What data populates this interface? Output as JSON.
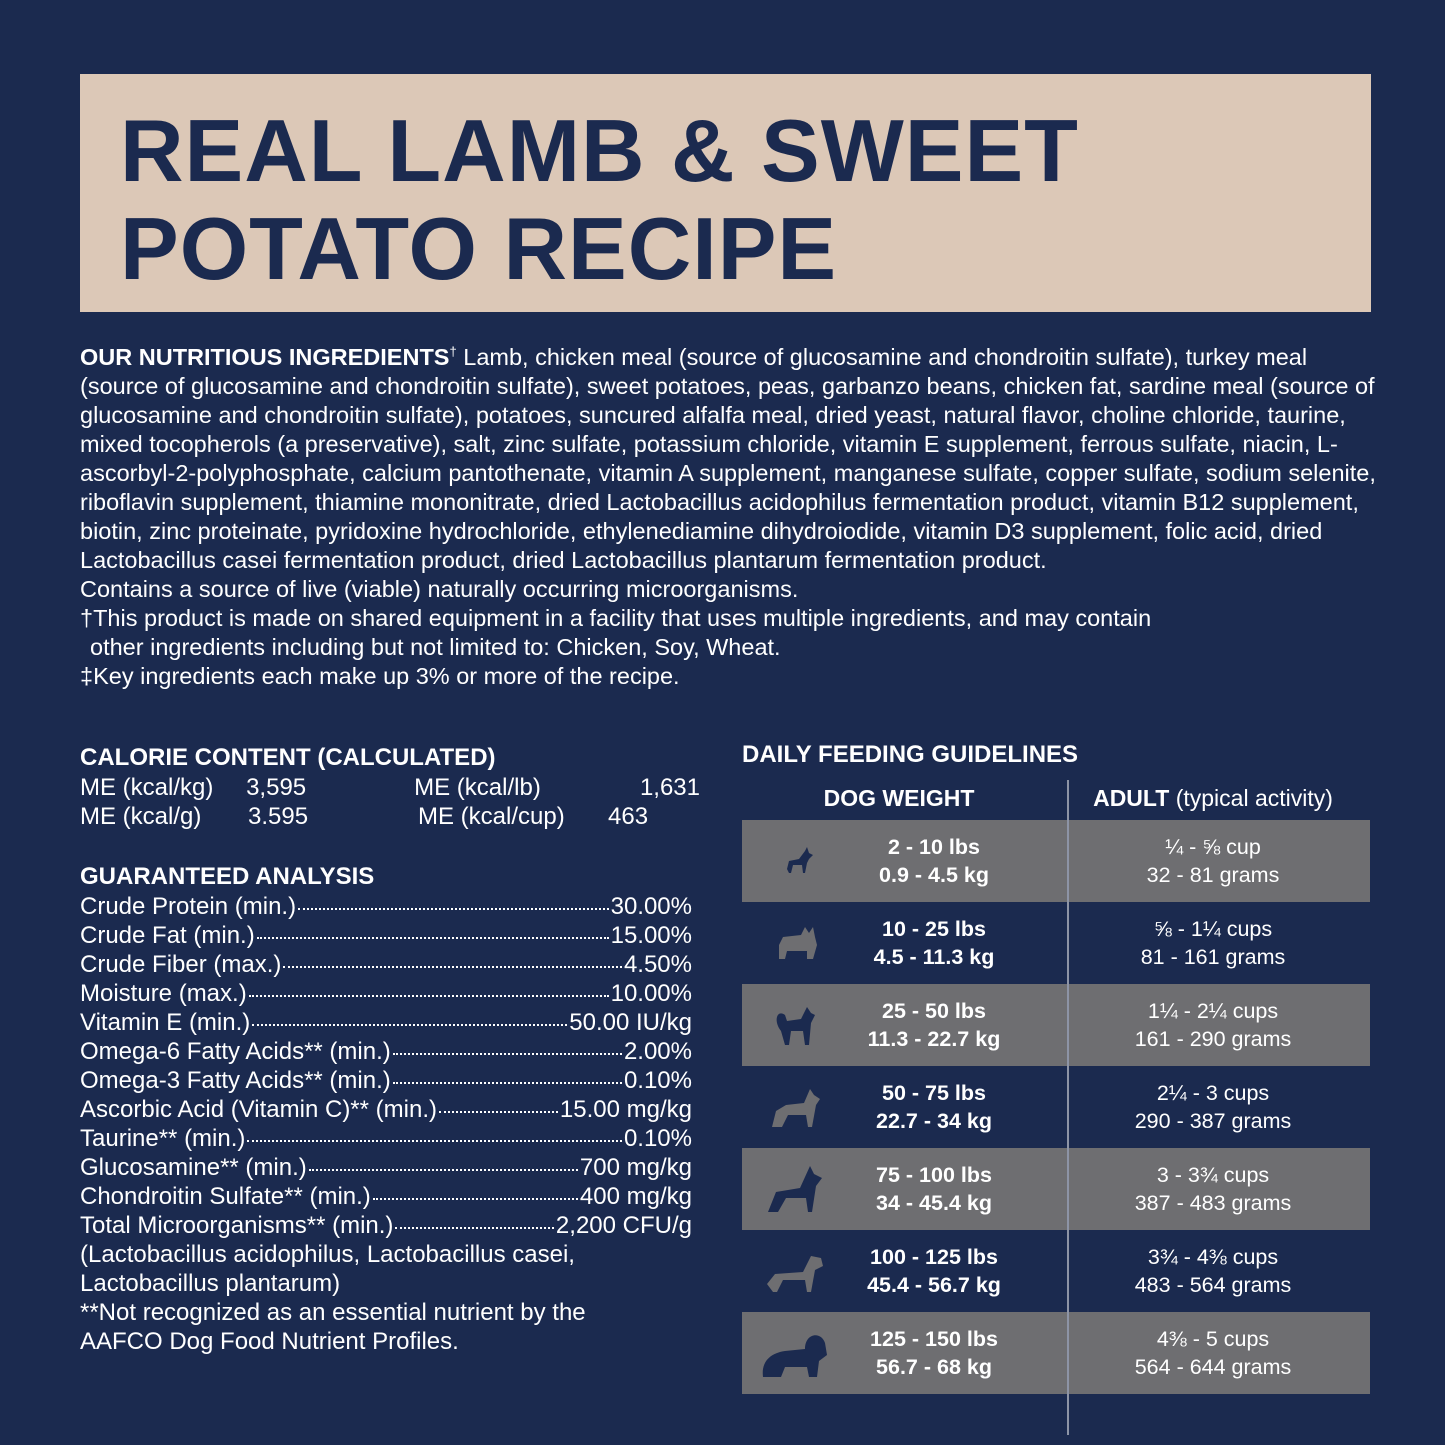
{
  "title": {
    "line1": "REAL LAMB & SWEET",
    "line2": "POTATO RECIPE"
  },
  "ingredients": {
    "heading": "OUR NUTRITIOUS INGREDIENTS",
    "dagger": "†",
    "text": " Lamb, chicken meal (source of glucosamine and chondroitin sulfate), turkey meal (source of glucosamine and chondroitin sulfate), sweet potatoes, peas, garbanzo beans, chicken fat, sardine meal (source of glucosamine and chondroitin sulfate), potatoes, suncured alfalfa meal, dried yeast, natural flavor, choline chloride, taurine, mixed tocopherols (a preservative), salt, zinc sulfate, potassium chloride, vitamin E supplement, ferrous sulfate, niacin, L-ascorbyl-2-polyphosphate, calcium pantothenate, vitamin A supplement, manganese sulfate, copper sulfate, sodium selenite, riboflavin supplement, thiamine mononitrate, dried Lactobacillus acidophilus fermentation product, vitamin B12 supplement, biotin, zinc proteinate, pyridoxine hydrochloride, ethylenediamine dihydroiodide, vitamin D3 supplement, folic acid, dried Lactobacillus casei fermentation product, dried Lactobacillus plantarum fermentation product.",
    "live": "Contains a source of live (viable) naturally occurring microorganisms.",
    "shared_line1": "†This product is made on shared equipment in a facility that uses multiple ingredients, and may contain",
    "shared_line2": "other ingredients including but not limited to: Chicken, Soy, Wheat.",
    "key": "‡Key ingredients each make up 3% or more of the recipe."
  },
  "calorie": {
    "heading": "CALORIE CONTENT (CALCULATED)",
    "rows": [
      [
        "ME (kcal/kg)",
        "3,595",
        "ME (kcal/lb)",
        "1,631"
      ],
      [
        "ME (kcal/g)",
        "3.595",
        "ME (kcal/cup)",
        "463"
      ]
    ]
  },
  "analysis": {
    "heading": "GUARANTEED ANALYSIS",
    "rows": [
      [
        "Crude Protein (min.)",
        "30.00%"
      ],
      [
        "Crude Fat (min.)",
        "15.00%"
      ],
      [
        "Crude Fiber (max.)",
        "4.50%"
      ],
      [
        "Moisture (max.)",
        "10.00%"
      ],
      [
        "Vitamin E (min.)",
        "50.00 IU/kg"
      ],
      [
        "Omega-6 Fatty Acids** (min.)",
        "2.00%"
      ],
      [
        "Omega-3 Fatty Acids** (min.)",
        "0.10%"
      ],
      [
        "Ascorbic Acid (Vitamin C)** (min.)",
        "15.00 mg/kg"
      ],
      [
        "Taurine** (min.)",
        "0.10%"
      ],
      [
        "Glucosamine** (min.)",
        "700 mg/kg"
      ],
      [
        "Chondroitin Sulfate** (min.)",
        "400 mg/kg"
      ],
      [
        "Total Microorganisms** (min.)",
        "2,200 CFU/g"
      ]
    ],
    "note1": "(Lactobacillus acidophilus, Lactobacillus casei,",
    "note2": "Lactobacillus plantarum)",
    "note3": "**Not recognized as an essential nutrient by the",
    "note4": "AAFCO Dog Food Nutrient Profiles."
  },
  "feeding": {
    "heading": "DAILY FEEDING GUIDELINES",
    "col1": "DOG WEIGHT",
    "col2_bold": "ADULT",
    "col2_rest": " (typical activity)",
    "rows": [
      {
        "lbs": "2 - 10 lbs",
        "kg": "0.9 - 4.5 kg",
        "cups": "¼ - ⅝ cup",
        "grams": "32 - 81 grams"
      },
      {
        "lbs": "10 - 25 lbs",
        "kg": "4.5 - 11.3 kg",
        "cups": "⅝ - 1¼ cups",
        "grams": "81 - 161 grams"
      },
      {
        "lbs": "25 - 50 lbs",
        "kg": "11.3 - 22.7 kg",
        "cups": "1¼ - 2¼ cups",
        "grams": "161 - 290 grams"
      },
      {
        "lbs": "50 - 75 lbs",
        "kg": "22.7 - 34 kg",
        "cups": "2¼ - 3 cups",
        "grams": "290 - 387 grams"
      },
      {
        "lbs": "75 - 100 lbs",
        "kg": "34 - 45.4 kg",
        "cups": "3 - 3¾ cups",
        "grams": "387 - 483 grams"
      },
      {
        "lbs": "100 - 125 lbs",
        "kg": "45.4 - 56.7 kg",
        "cups": "3¾ - 4⅜ cups",
        "grams": "483 - 564 grams"
      },
      {
        "lbs": "125 - 150 lbs",
        "kg": "56.7 - 68 kg",
        "cups": "4⅜ - 5 cups",
        "grams": "564 - 644 grams"
      }
    ]
  },
  "colors": {
    "background": "#1b2a4f",
    "title_box": "#dcc8b7",
    "row_gray": "#6e6e71"
  }
}
